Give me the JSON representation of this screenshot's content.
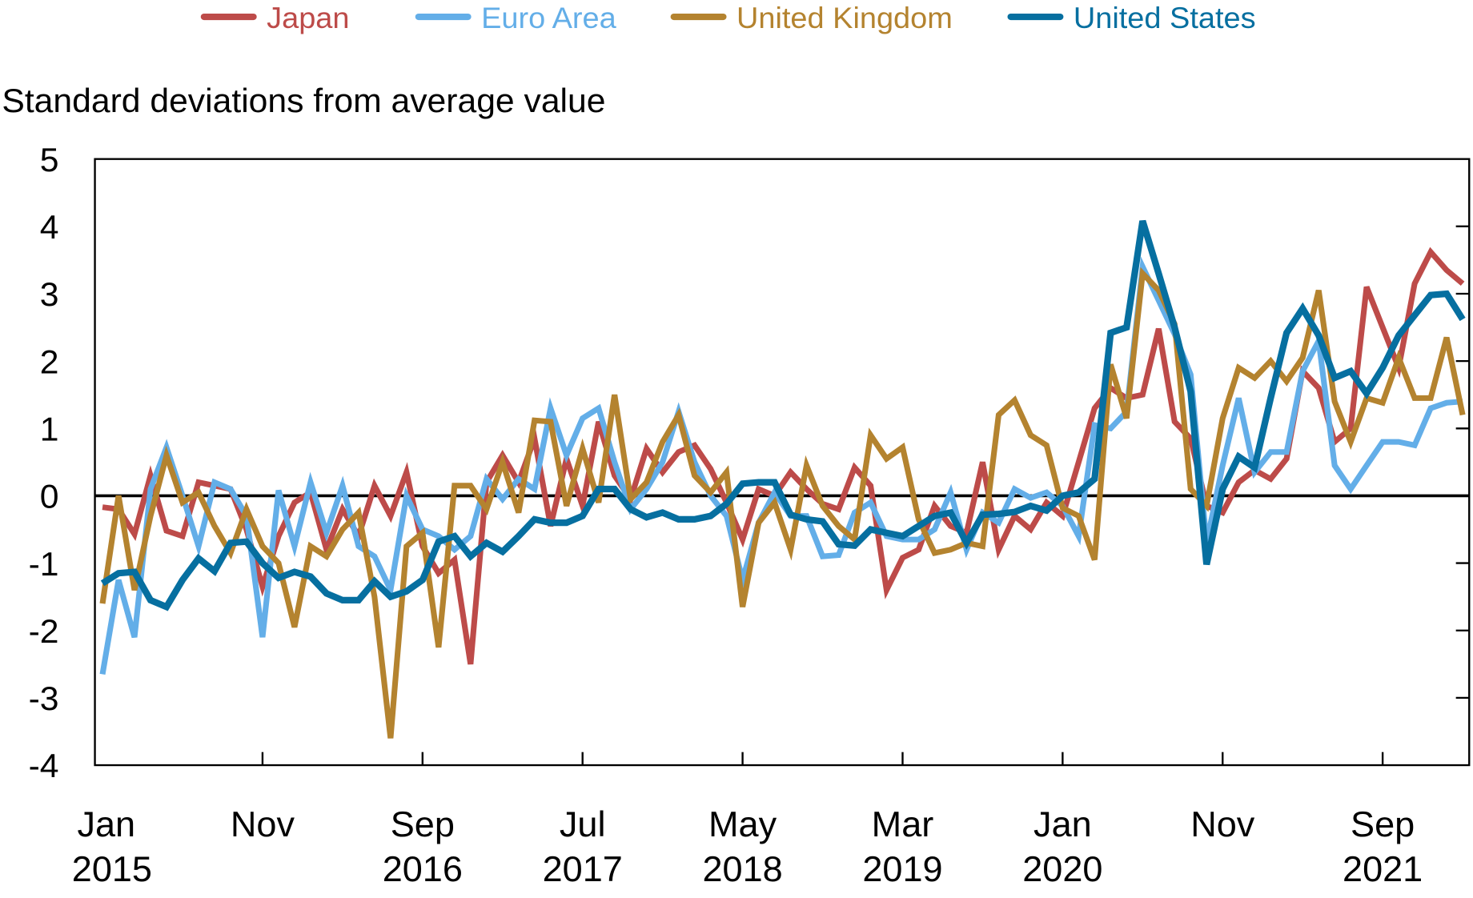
{
  "chart_data": {
    "type": "line",
    "title": "",
    "ylabel": "Standard deviations from average value",
    "xlabel": "",
    "ylim": [
      -4,
      5
    ],
    "yticks": [
      "5",
      "4",
      "3",
      "2",
      "1",
      "0",
      "-1",
      "-2",
      "-3",
      "-4"
    ],
    "xtick_labels": [
      {
        "month": "Jan",
        "year": "2015",
        "date": "2015-01"
      },
      {
        "month": "Nov",
        "year": "",
        "date": "2015-11"
      },
      {
        "month": "Sep",
        "year": "2016",
        "date": "2016-09"
      },
      {
        "month": "Jul",
        "year": "2017",
        "date": "2017-07"
      },
      {
        "month": "May",
        "year": "2018",
        "date": "2018-05"
      },
      {
        "month": "Mar",
        "year": "2019",
        "date": "2019-03"
      },
      {
        "month": "Jan",
        "year": "2020",
        "date": "2020-01"
      },
      {
        "month": "Nov",
        "year": "",
        "date": "2020-11"
      },
      {
        "month": "Sep",
        "year": "2021",
        "date": "2021-09"
      }
    ],
    "legend_placement": "top",
    "grid": false,
    "zero_line": true,
    "x": [
      "2015-01",
      "2015-02",
      "2015-03",
      "2015-04",
      "2015-05",
      "2015-06",
      "2015-07",
      "2015-08",
      "2015-09",
      "2015-10",
      "2015-11",
      "2015-12",
      "2016-01",
      "2016-02",
      "2016-03",
      "2016-04",
      "2016-05",
      "2016-06",
      "2016-07",
      "2016-08",
      "2016-09",
      "2016-10",
      "2016-11",
      "2016-12",
      "2017-01",
      "2017-02",
      "2017-03",
      "2017-04",
      "2017-05",
      "2017-06",
      "2017-07",
      "2017-08",
      "2017-09",
      "2017-10",
      "2017-11",
      "2017-12",
      "2018-01",
      "2018-02",
      "2018-03",
      "2018-04",
      "2018-05",
      "2018-06",
      "2018-07",
      "2018-08",
      "2018-09",
      "2018-10",
      "2018-11",
      "2018-12",
      "2019-01",
      "2019-02",
      "2019-03",
      "2019-04",
      "2019-05",
      "2019-06",
      "2019-07",
      "2019-08",
      "2019-09",
      "2019-10",
      "2019-11",
      "2019-12",
      "2020-01",
      "2020-02",
      "2020-03",
      "2020-04",
      "2020-05",
      "2020-06",
      "2020-07",
      "2020-08",
      "2020-09",
      "2020-10",
      "2020-11",
      "2020-12",
      "2021-01",
      "2021-02",
      "2021-03",
      "2021-04",
      "2021-05",
      "2021-06",
      "2021-07",
      "2021-08",
      "2021-09",
      "2021-10",
      "2021-11",
      "2021-12",
      "2022-01",
      "2022-02"
    ],
    "series": [
      {
        "name": "Japan",
        "color": "#bd4b49",
        "values": [
          -0.17,
          -0.2,
          -0.57,
          0.3,
          -0.52,
          -0.6,
          0.2,
          0.15,
          0.1,
          -0.5,
          -1.35,
          -0.6,
          -0.1,
          0.05,
          -0.8,
          -0.2,
          -0.6,
          0.15,
          -0.3,
          0.35,
          -0.75,
          -1.15,
          -0.95,
          -2.5,
          0.2,
          0.6,
          0.2,
          0.85,
          -0.45,
          0.55,
          -0.15,
          1.1,
          0.3,
          -0.05,
          0.7,
          0.35,
          0.65,
          0.75,
          0.4,
          -0.1,
          -0.65,
          0.1,
          0.0,
          0.35,
          0.1,
          -0.12,
          -0.2,
          0.42,
          0.15,
          -1.4,
          -0.92,
          -0.8,
          -0.15,
          -0.45,
          -0.55,
          0.5,
          -0.8,
          -0.3,
          -0.5,
          -0.1,
          -0.3,
          0.5,
          1.3,
          1.6,
          1.45,
          1.5,
          2.48,
          1.1,
          0.85,
          -0.15,
          -0.25,
          0.2,
          0.38,
          0.25,
          0.55,
          1.85,
          1.6,
          0.8,
          1.0,
          3.1,
          2.5,
          1.9,
          3.15,
          3.62,
          3.35,
          3.15
        ]
      },
      {
        "name": "Euro Area",
        "color": "#63aee8",
        "values": [
          -2.65,
          -1.25,
          -2.1,
          0.1,
          0.72,
          0.0,
          -0.75,
          0.2,
          0.1,
          -0.3,
          -2.1,
          0.08,
          -0.75,
          0.2,
          -0.55,
          0.15,
          -0.75,
          -0.9,
          -1.4,
          0.0,
          -0.5,
          -0.6,
          -0.8,
          -0.6,
          0.25,
          -0.05,
          0.25,
          0.1,
          1.3,
          0.6,
          1.15,
          1.3,
          0.5,
          -0.2,
          0.1,
          0.5,
          1.25,
          0.5,
          0.0,
          -0.3,
          -1.25,
          -0.4,
          0.05,
          -0.3,
          -0.3,
          -0.9,
          -0.88,
          -0.25,
          -0.1,
          -0.6,
          -0.65,
          -0.65,
          -0.5,
          0.05,
          -0.8,
          -0.25,
          -0.4,
          0.1,
          -0.03,
          0.05,
          -0.15,
          -0.6,
          1.05,
          1.0,
          1.25,
          3.4,
          2.9,
          2.4,
          1.8,
          -0.7,
          0.45,
          1.45,
          0.35,
          0.65,
          0.65,
          1.85,
          2.3,
          0.45,
          0.1,
          0.45,
          0.8,
          0.8,
          0.75,
          1.3,
          1.38,
          1.4
        ]
      },
      {
        "name": "United Kingdom",
        "color": "#b4832f",
        "values": [
          -1.6,
          0.0,
          -1.4,
          -0.3,
          0.6,
          -0.1,
          0.05,
          -0.45,
          -0.85,
          -0.2,
          -0.75,
          -1.0,
          -1.95,
          -0.75,
          -0.9,
          -0.5,
          -0.25,
          -1.5,
          -3.6,
          -0.75,
          -0.55,
          -2.25,
          0.15,
          0.15,
          -0.2,
          0.5,
          -0.25,
          1.12,
          1.1,
          -0.15,
          0.7,
          -0.1,
          1.5,
          -0.05,
          0.2,
          0.8,
          1.2,
          0.3,
          0.05,
          0.35,
          -1.65,
          -0.4,
          -0.1,
          -0.8,
          0.45,
          -0.15,
          -0.45,
          -0.65,
          0.9,
          0.55,
          0.72,
          -0.35,
          -0.85,
          -0.8,
          -0.7,
          -0.75,
          1.2,
          1.42,
          0.9,
          0.75,
          -0.18,
          -0.3,
          -0.95,
          1.95,
          1.15,
          3.3,
          3.05,
          2.55,
          0.1,
          -0.15,
          1.15,
          1.9,
          1.75,
          2.0,
          1.7,
          2.05,
          3.05,
          1.4,
          0.8,
          1.45,
          1.38,
          2.05,
          1.45,
          1.45,
          2.35,
          1.2
        ]
      },
      {
        "name": "United States",
        "color": "#066fa0",
        "values": [
          -1.3,
          -1.15,
          -1.13,
          -1.55,
          -1.65,
          -1.25,
          -0.93,
          -1.12,
          -0.7,
          -0.68,
          -1.0,
          -1.22,
          -1.13,
          -1.2,
          -1.45,
          -1.55,
          -1.55,
          -1.27,
          -1.5,
          -1.42,
          -1.25,
          -0.68,
          -0.6,
          -0.9,
          -0.7,
          -0.83,
          -0.6,
          -0.35,
          -0.4,
          -0.4,
          -0.3,
          0.1,
          0.1,
          -0.2,
          -0.32,
          -0.25,
          -0.35,
          -0.35,
          -0.3,
          -0.12,
          0.18,
          0.2,
          0.2,
          -0.28,
          -0.35,
          -0.38,
          -0.72,
          -0.74,
          -0.5,
          -0.55,
          -0.6,
          -0.45,
          -0.3,
          -0.25,
          -0.7,
          -0.28,
          -0.27,
          -0.24,
          -0.15,
          -0.22,
          0.0,
          0.05,
          0.25,
          2.42,
          2.5,
          4.08,
          3.3,
          2.5,
          1.55,
          -1.02,
          0.1,
          0.58,
          0.42,
          1.45,
          2.42,
          2.78,
          2.38,
          1.75,
          1.85,
          1.52,
          1.9,
          2.38,
          2.68,
          2.98,
          3.0,
          2.62
        ]
      }
    ]
  }
}
